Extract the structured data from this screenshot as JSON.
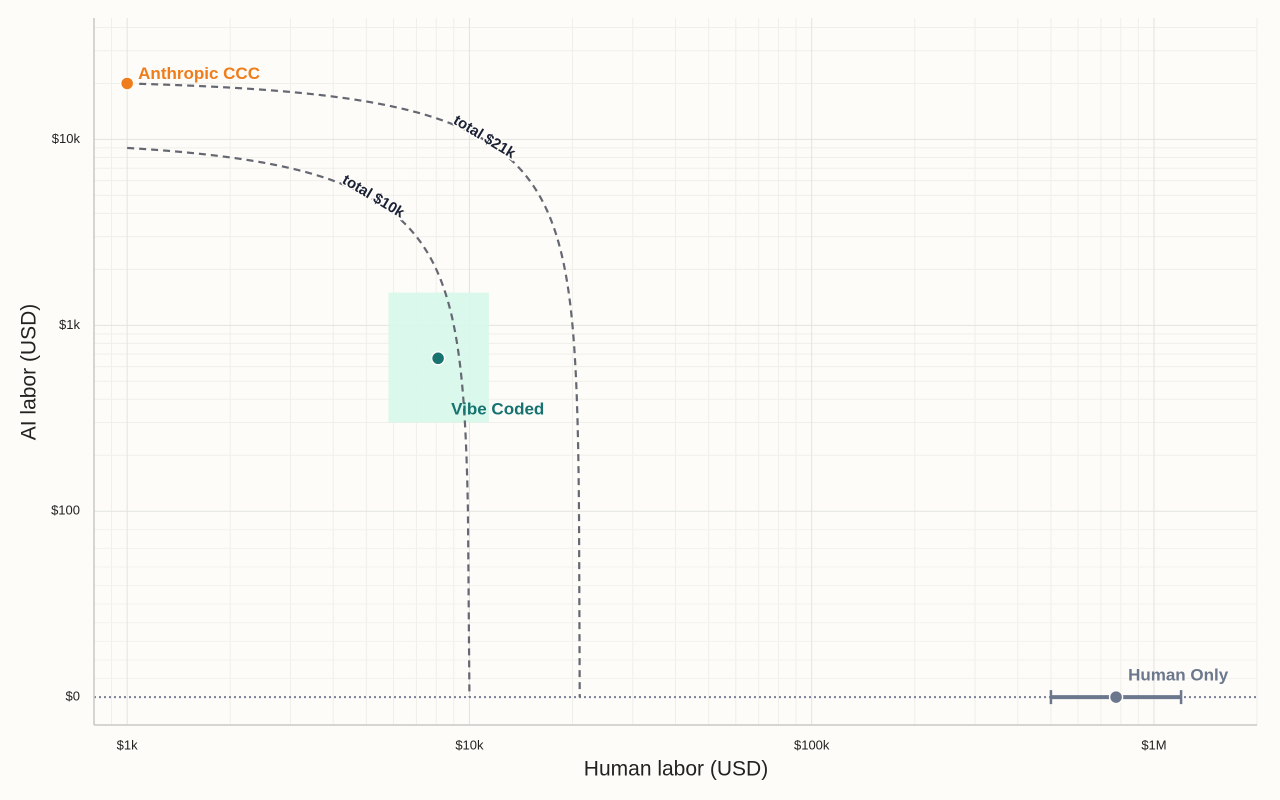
{
  "chart_data": {
    "type": "cost-frontier",
    "x_label": "Human labor (USD)",
    "y_label": "AI labor (USD)",
    "xscale": "log",
    "yscale": "symlog",
    "y_linthresh": 100,
    "xlim": [
      800,
      2000000
    ],
    "ylim": [
      -15,
      45000
    ],
    "xticks": [
      {
        "value": 1000,
        "label": "$1k"
      },
      {
        "value": 10000,
        "label": "$10k"
      },
      {
        "value": 100000,
        "label": "$100k"
      },
      {
        "value": 1000000,
        "label": "$1M"
      }
    ],
    "yticks": [
      {
        "value": 0,
        "label": "$0"
      },
      {
        "value": 100,
        "label": "$100"
      },
      {
        "value": 1000,
        "label": "$1k"
      },
      {
        "value": 10000,
        "label": "$10k"
      }
    ],
    "grid": true,
    "iso_costs": [
      {
        "label": "total $10k",
        "total": 10000,
        "color": "#656872"
      },
      {
        "label": "total $21k",
        "total": 21000,
        "color": "#656872"
      }
    ],
    "points": [
      {
        "name": "Anthropic CCC",
        "x": 1000,
        "y": 20000,
        "color": "#f07d1c"
      },
      {
        "name": "Vibe Coded",
        "x": 8100,
        "y": 665,
        "color": "#177370",
        "x_range": [
          5800,
          11400
        ],
        "y_range": [
          300,
          1500
        ],
        "range_color": "#d6f7ea"
      },
      {
        "name": "Human Only",
        "x": 775000,
        "y": 0,
        "color": "#6b778c",
        "x_range": [
          500000,
          1200000
        ]
      }
    ]
  }
}
